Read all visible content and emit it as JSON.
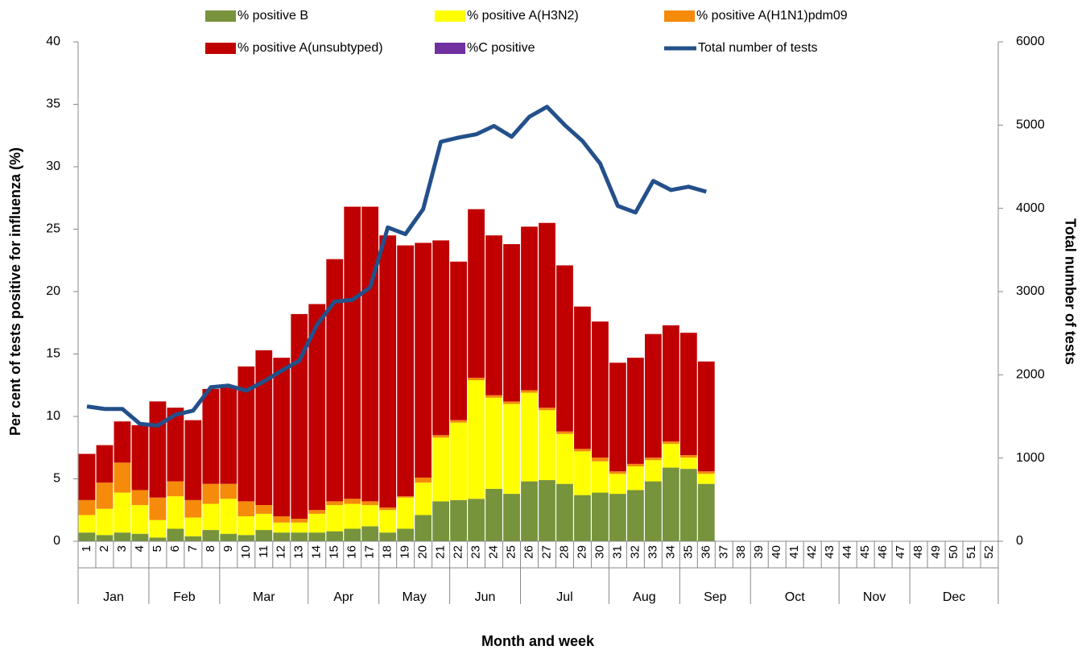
{
  "chart_data": {
    "type": "stacked-bar-line",
    "xlabel": "Month and week",
    "ylabel": "Per cent of tests positive for influenza (%)",
    "y2label": "Total number of tests",
    "ylim": [
      0,
      40
    ],
    "yticks": [
      0,
      5,
      10,
      15,
      20,
      25,
      30,
      35,
      40
    ],
    "y2lim": [
      0,
      6000
    ],
    "y2ticks": [
      0,
      1000,
      2000,
      3000,
      4000,
      5000,
      6000
    ],
    "categories": [
      "1",
      "2",
      "3",
      "4",
      "5",
      "6",
      "7",
      "8",
      "9",
      "10",
      "11",
      "12",
      "13",
      "14",
      "15",
      "16",
      "17",
      "18",
      "19",
      "20",
      "21",
      "22",
      "23",
      "24",
      "25",
      "26",
      "27",
      "28",
      "29",
      "30",
      "31",
      "32",
      "33",
      "34",
      "35",
      "36",
      "37",
      "38",
      "39",
      "40",
      "41",
      "42",
      "43",
      "44",
      "45",
      "46",
      "47",
      "48",
      "49",
      "50",
      "51",
      "52"
    ],
    "month_groups": [
      {
        "label": "Jan",
        "weeks": 4
      },
      {
        "label": "Feb",
        "weeks": 4
      },
      {
        "label": "Mar",
        "weeks": 5
      },
      {
        "label": "Apr",
        "weeks": 4
      },
      {
        "label": "May",
        "weeks": 4
      },
      {
        "label": "Jun",
        "weeks": 4
      },
      {
        "label": "Jul",
        "weeks": 5
      },
      {
        "label": "Aug",
        "weeks": 4
      },
      {
        "label": "Sep",
        "weeks": 4
      },
      {
        "label": "Oct",
        "weeks": 5
      },
      {
        "label": "Nov",
        "weeks": 4
      },
      {
        "label": "Dec",
        "weeks": 5
      }
    ],
    "series": [
      {
        "name": "% positive B",
        "color": "#77933c",
        "type": "bar",
        "values": [
          0.7,
          0.5,
          0.7,
          0.6,
          0.3,
          1.0,
          0.4,
          0.9,
          0.6,
          0.5,
          0.9,
          0.7,
          0.7,
          0.7,
          0.8,
          1.0,
          1.2,
          0.7,
          1.0,
          2.1,
          3.2,
          3.3,
          3.4,
          4.2,
          3.8,
          4.8,
          4.9,
          4.6,
          3.7,
          3.9,
          3.8,
          4.1,
          4.8,
          5.9,
          5.8,
          4.6,
          null,
          null,
          null,
          null,
          null,
          null,
          null,
          null,
          null,
          null,
          null,
          null,
          null,
          null,
          null,
          null
        ]
      },
      {
        "name": "% positive A(H3N2)",
        "color": "#ffff00",
        "type": "bar",
        "values": [
          1.4,
          2.1,
          3.2,
          2.3,
          1.4,
          2.6,
          1.5,
          2.1,
          2.8,
          1.5,
          1.3,
          0.8,
          0.8,
          1.5,
          2.1,
          2.0,
          1.7,
          1.8,
          2.5,
          2.6,
          5.1,
          6.2,
          9.5,
          7.3,
          7.2,
          7.1,
          5.6,
          4.0,
          3.5,
          2.5,
          1.6,
          1.9,
          1.7,
          1.9,
          0.9,
          0.8,
          null,
          null,
          null,
          null,
          null,
          null,
          null,
          null,
          null,
          null,
          null,
          null,
          null,
          null,
          null,
          null
        ]
      },
      {
        "name": "% positive A(H1N1)pdm09",
        "color": "#f58a0b",
        "type": "bar",
        "values": [
          1.2,
          2.1,
          2.4,
          1.2,
          1.8,
          1.2,
          1.4,
          1.6,
          1.2,
          1.2,
          0.7,
          0.5,
          0.3,
          0.3,
          0.3,
          0.4,
          0.3,
          0.2,
          0.1,
          0.4,
          0.2,
          0.2,
          0.2,
          0.2,
          0.2,
          0.2,
          0.2,
          0.2,
          0.2,
          0.3,
          0.2,
          0.2,
          0.2,
          0.2,
          0.2,
          0.2,
          null,
          null,
          null,
          null,
          null,
          null,
          null,
          null,
          null,
          null,
          null,
          null,
          null,
          null,
          null,
          null
        ]
      },
      {
        "name": "% positive A(unsubtyped)",
        "color": "#c00000",
        "type": "bar",
        "values": [
          3.7,
          3.0,
          3.3,
          5.2,
          7.7,
          5.9,
          6.4,
          7.6,
          7.7,
          10.8,
          12.4,
          12.7,
          16.4,
          16.5,
          19.4,
          23.4,
          23.6,
          21.8,
          20.1,
          18.8,
          15.6,
          12.7,
          13.5,
          12.8,
          12.6,
          13.1,
          14.8,
          13.3,
          11.4,
          10.9,
          8.7,
          8.5,
          9.9,
          9.3,
          9.8,
          8.8,
          null,
          null,
          null,
          null,
          null,
          null,
          null,
          null,
          null,
          null,
          null,
          null,
          null,
          null,
          null,
          null
        ]
      },
      {
        "name": "%C positive",
        "color": "#7030a0",
        "type": "bar",
        "values": [
          0,
          0,
          0,
          0,
          0,
          0,
          0,
          0,
          0,
          0,
          0,
          0,
          0,
          0,
          0,
          0,
          0,
          0,
          0,
          0,
          0,
          0,
          0,
          0,
          0,
          0,
          0,
          0,
          0,
          0,
          0,
          0,
          0,
          0,
          0,
          0,
          null,
          null,
          null,
          null,
          null,
          null,
          null,
          null,
          null,
          null,
          null,
          null,
          null,
          null,
          null,
          null
        ]
      },
      {
        "name": "Total number of tests",
        "color": "#23508a",
        "type": "line",
        "axis": "y2",
        "values": [
          1620,
          1590,
          1590,
          1410,
          1390,
          1520,
          1570,
          1850,
          1870,
          1810,
          1920,
          2050,
          2170,
          2600,
          2880,
          2900,
          3050,
          3770,
          3690,
          3990,
          4800,
          4850,
          4890,
          4990,
          4860,
          5100,
          5220,
          5000,
          4810,
          4540,
          4030,
          3950,
          4330,
          4220,
          4260,
          4200,
          null,
          null,
          null,
          null,
          null,
          null,
          null,
          null,
          null,
          null,
          null,
          null,
          null,
          null,
          null,
          null
        ]
      }
    ]
  }
}
